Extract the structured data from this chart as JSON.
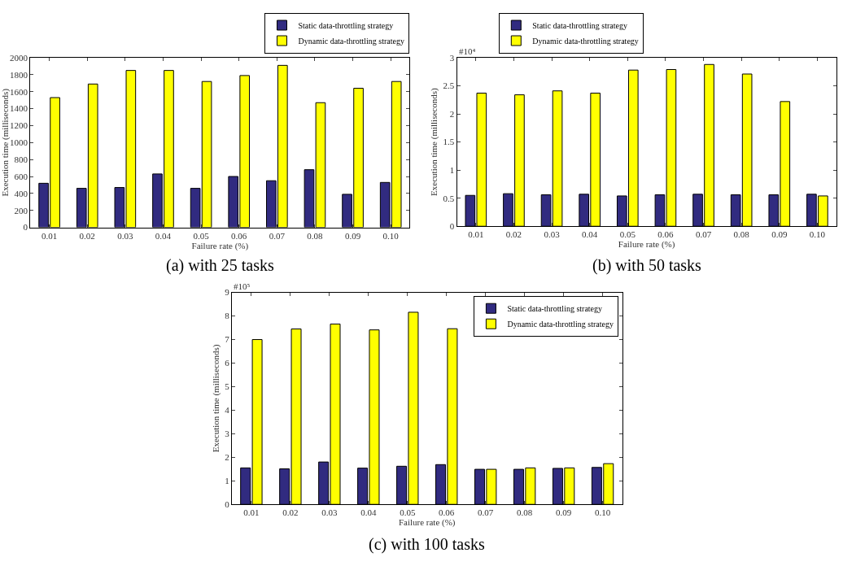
{
  "chart_data": [
    {
      "type": "bar",
      "title": "(a) with 25 tasks",
      "xlabel": "Failure rate (%)",
      "ylabel": "Execution time (milliseconds)",
      "categories": [
        "0.01",
        "0.02",
        "0.03",
        "0.04",
        "0.05",
        "0.06",
        "0.07",
        "0.08",
        "0.09",
        "0.10"
      ],
      "series": [
        {
          "name": "Static data-throttling strategy",
          "color": "#312b80",
          "values": [
            520,
            460,
            470,
            630,
            460,
            600,
            550,
            680,
            390,
            530
          ]
        },
        {
          "name": "Dynamic data-throttling strategy",
          "color": "#ffff00",
          "values": [
            1530,
            1690,
            1850,
            1850,
            1720,
            1790,
            1910,
            1470,
            1640,
            1720
          ]
        }
      ],
      "ylim": [
        0,
        2000
      ],
      "yticks": [
        0,
        200,
        400,
        600,
        800,
        1000,
        1200,
        1400,
        1600,
        1800,
        2000
      ],
      "legend": "top right"
    },
    {
      "type": "bar",
      "title": "(b) with 50 tasks",
      "xlabel": "Failure rate (%)",
      "ylabel": "Execution time (milliseconds)",
      "annotations": [
        "#10⁴"
      ],
      "categories": [
        "0.01",
        "0.02",
        "0.03",
        "0.04",
        "0.05",
        "0.06",
        "0.07",
        "0.08",
        "0.09",
        "0.10"
      ],
      "series": [
        {
          "name": "Static data-throttling strategy",
          "color": "#312b80",
          "values": [
            0.55,
            0.58,
            0.56,
            0.57,
            0.54,
            0.56,
            0.57,
            0.56,
            0.56,
            0.57
          ]
        },
        {
          "name": "Dynamic data-throttling strategy",
          "color": "#ffff00",
          "values": [
            2.37,
            2.34,
            2.41,
            2.37,
            2.78,
            2.79,
            2.88,
            2.71,
            2.22,
            0.54
          ]
        }
      ],
      "ylim": [
        0,
        3
      ],
      "yticks": [
        0,
        0.5,
        1,
        1.5,
        2,
        2.5,
        3
      ],
      "legend": "top left"
    },
    {
      "type": "bar",
      "title": "(c) with 100 tasks",
      "xlabel": "Failure rate (%)",
      "ylabel": "Execution time (milliseconds)",
      "annotations": [
        "#10⁵"
      ],
      "categories": [
        "0.01",
        "0.02",
        "0.03",
        "0.04",
        "0.05",
        "0.06",
        "0.07",
        "0.08",
        "0.09",
        "0.10"
      ],
      "series": [
        {
          "name": "Static data-throttling strategy",
          "color": "#312b80",
          "values": [
            1.55,
            1.51,
            1.8,
            1.54,
            1.62,
            1.69,
            1.49,
            1.49,
            1.53,
            1.57
          ]
        },
        {
          "name": "Dynamic data-throttling strategy",
          "color": "#ffff00",
          "values": [
            7.0,
            7.45,
            7.66,
            7.41,
            8.16,
            7.46,
            1.49,
            1.55,
            1.55,
            1.73
          ]
        }
      ],
      "ylim": [
        0,
        9
      ],
      "yticks": [
        0,
        1,
        2,
        3,
        4,
        5,
        6,
        7,
        8,
        9
      ],
      "legend": "top right"
    }
  ]
}
